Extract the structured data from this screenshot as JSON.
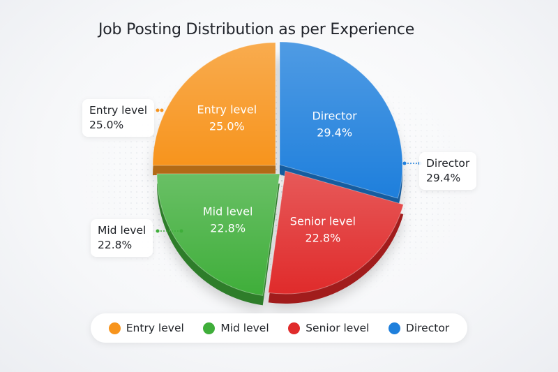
{
  "chart_data": {
    "type": "pie",
    "title": "Job Posting Distribution as per Experience",
    "slices": [
      {
        "label": "Entry level",
        "value": 25.0,
        "value_label": "25.0%",
        "color": "#f7941d"
      },
      {
        "label": "Mid level",
        "value": 22.8,
        "value_label": "22.8%",
        "color": "#3fae3a"
      },
      {
        "label": "Senior level",
        "value": 22.8,
        "value_label": "22.8%",
        "color": "#e02b2b"
      },
      {
        "label": "Director",
        "value": 29.4,
        "value_label": "29.4%",
        "color": "#1e7fdc"
      }
    ],
    "legend_placement": "bottom"
  }
}
